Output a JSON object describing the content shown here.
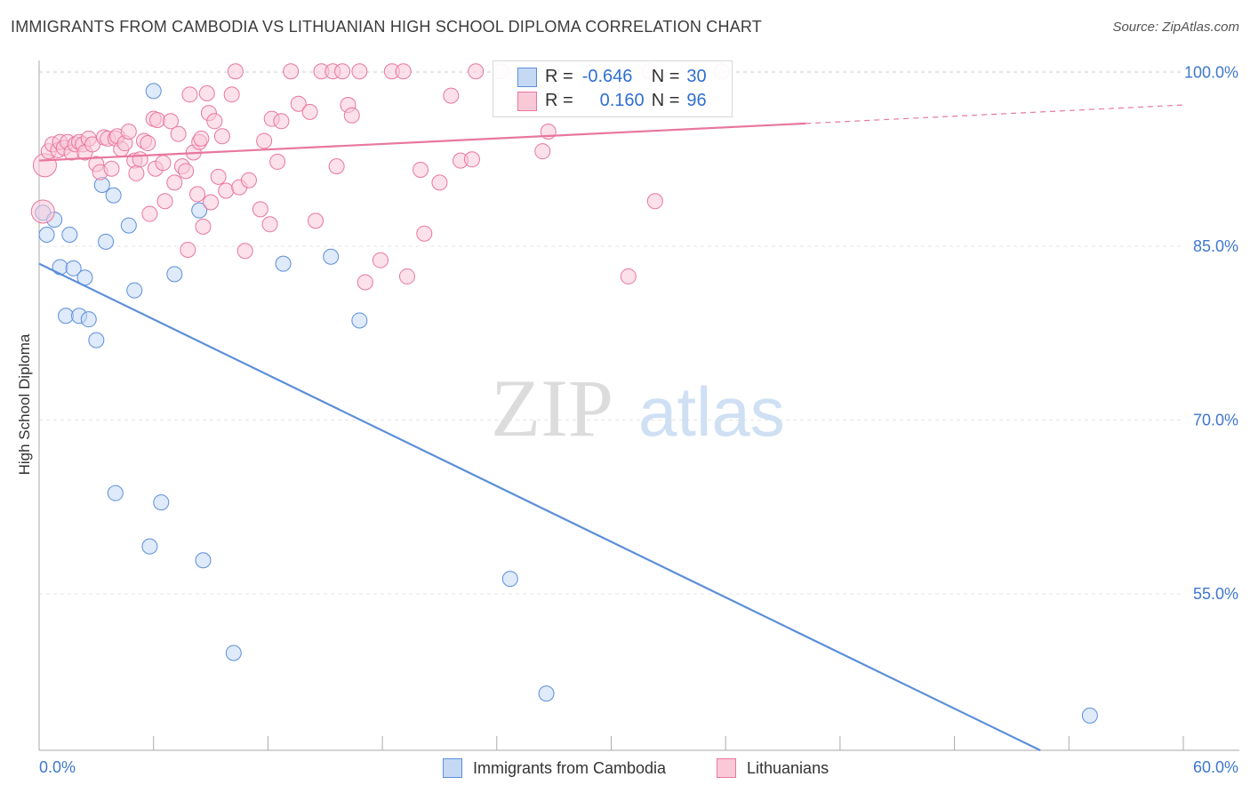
{
  "title": "IMMIGRANTS FROM CAMBODIA VS LITHUANIAN HIGH SCHOOL DIPLOMA CORRELATION CHART",
  "source": "Source: ZipAtlas.com",
  "watermark": {
    "zip": "ZIP",
    "atlas": "atlas"
  },
  "legend": {
    "r_label": "R =",
    "n_label": "N =",
    "rows": [
      {
        "r": "-0.646",
        "n": "30",
        "color": "#5b8fd9",
        "fill": "#c5d9f5"
      },
      {
        "r": "0.160",
        "n": "96",
        "color": "#e8779e",
        "fill": "#f9c9d8"
      }
    ]
  },
  "bottom_legend": [
    "Immigrants from Cambodia",
    "Lithuanians"
  ],
  "chart_data": {
    "type": "scatter",
    "title": "IMMIGRANTS FROM CAMBODIA VS LITHUANIAN HIGH SCHOOL DIPLOMA CORRELATION CHART",
    "xlabel": "",
    "ylabel": "High School Diploma",
    "xlim": [
      0,
      60
    ],
    "ylim": [
      41.5,
      101.5
    ],
    "x_tick_labels": [
      "0.0%",
      "60.0%"
    ],
    "y_ticks": [
      55,
      70,
      85,
      100
    ],
    "y_tick_labels": [
      "55.0%",
      "70.0%",
      "85.0%",
      "100.0%"
    ],
    "grid": true,
    "series": [
      {
        "name": "Immigrants from Cambodia",
        "color": "#5b8fd9",
        "fill": "#c5d9f5",
        "points": [
          [
            0.2,
            87.9
          ],
          [
            0.4,
            86.0
          ],
          [
            0.8,
            87.3
          ],
          [
            1.1,
            83.2
          ],
          [
            1.4,
            79.0
          ],
          [
            1.6,
            86.0
          ],
          [
            1.8,
            83.1
          ],
          [
            2.1,
            79.0
          ],
          [
            2.4,
            82.3
          ],
          [
            2.6,
            78.7
          ],
          [
            3.0,
            76.9
          ],
          [
            3.3,
            90.3
          ],
          [
            3.5,
            85.4
          ],
          [
            3.9,
            89.4
          ],
          [
            4.0,
            63.7
          ],
          [
            4.7,
            86.8
          ],
          [
            5.0,
            81.2
          ],
          [
            5.8,
            59.1
          ],
          [
            6.0,
            98.4
          ],
          [
            6.4,
            62.9
          ],
          [
            7.1,
            82.6
          ],
          [
            8.4,
            88.1
          ],
          [
            8.6,
            57.9
          ],
          [
            10.2,
            49.9
          ],
          [
            12.8,
            83.5
          ],
          [
            15.3,
            84.1
          ],
          [
            16.8,
            78.6
          ],
          [
            24.7,
            56.3
          ],
          [
            26.6,
            46.4
          ],
          [
            55.1,
            44.5
          ]
        ]
      },
      {
        "name": "Lithuanians",
        "color": "#e8779e",
        "fill": "#f9c9d8",
        "points": [
          [
            0.2,
            88.0
          ],
          [
            0.3,
            92.0
          ],
          [
            0.5,
            93.2
          ],
          [
            0.7,
            93.8
          ],
          [
            1.0,
            93.3
          ],
          [
            1.1,
            94.0
          ],
          [
            1.3,
            93.5
          ],
          [
            1.5,
            94.0
          ],
          [
            1.7,
            93.1
          ],
          [
            1.9,
            93.8
          ],
          [
            2.1,
            94.0
          ],
          [
            2.3,
            93.8
          ],
          [
            2.4,
            93.1
          ],
          [
            2.6,
            94.3
          ],
          [
            2.8,
            93.8
          ],
          [
            3.0,
            92.1
          ],
          [
            3.2,
            91.4
          ],
          [
            3.4,
            94.4
          ],
          [
            3.6,
            94.3
          ],
          [
            3.8,
            91.7
          ],
          [
            4.0,
            94.3
          ],
          [
            4.1,
            94.5
          ],
          [
            4.3,
            93.4
          ],
          [
            4.5,
            93.9
          ],
          [
            4.7,
            94.9
          ],
          [
            5.0,
            92.4
          ],
          [
            5.1,
            91.3
          ],
          [
            5.3,
            92.5
          ],
          [
            5.5,
            94.1
          ],
          [
            5.7,
            93.9
          ],
          [
            5.8,
            87.8
          ],
          [
            6.0,
            96.0
          ],
          [
            6.1,
            91.7
          ],
          [
            6.2,
            95.9
          ],
          [
            6.5,
            92.2
          ],
          [
            6.6,
            88.9
          ],
          [
            6.9,
            95.8
          ],
          [
            7.1,
            90.5
          ],
          [
            7.3,
            94.7
          ],
          [
            7.5,
            91.9
          ],
          [
            7.7,
            91.5
          ],
          [
            7.8,
            84.7
          ],
          [
            7.9,
            98.1
          ],
          [
            8.1,
            93.1
          ],
          [
            8.3,
            89.5
          ],
          [
            8.4,
            94.0
          ],
          [
            8.5,
            94.3
          ],
          [
            8.6,
            86.7
          ],
          [
            8.8,
            98.2
          ],
          [
            8.9,
            96.5
          ],
          [
            9.0,
            88.8
          ],
          [
            9.2,
            95.8
          ],
          [
            9.4,
            91.0
          ],
          [
            9.6,
            94.5
          ],
          [
            9.8,
            89.8
          ],
          [
            10.1,
            98.1
          ],
          [
            10.3,
            100.1
          ],
          [
            10.5,
            90.1
          ],
          [
            10.8,
            84.6
          ],
          [
            11.0,
            90.7
          ],
          [
            11.6,
            88.2
          ],
          [
            11.8,
            94.1
          ],
          [
            12.1,
            86.9
          ],
          [
            12.2,
            96.0
          ],
          [
            12.5,
            92.3
          ],
          [
            12.7,
            95.8
          ],
          [
            13.2,
            100.1
          ],
          [
            13.6,
            97.3
          ],
          [
            14.2,
            96.6
          ],
          [
            14.5,
            87.2
          ],
          [
            14.8,
            100.1
          ],
          [
            15.4,
            100.1
          ],
          [
            15.6,
            91.9
          ],
          [
            15.9,
            100.1
          ],
          [
            16.2,
            97.2
          ],
          [
            16.4,
            96.3
          ],
          [
            16.8,
            100.1
          ],
          [
            17.1,
            81.9
          ],
          [
            17.9,
            83.8
          ],
          [
            18.5,
            100.1
          ],
          [
            19.1,
            100.1
          ],
          [
            19.3,
            82.4
          ],
          [
            20.0,
            91.6
          ],
          [
            20.2,
            86.1
          ],
          [
            21.0,
            90.5
          ],
          [
            21.6,
            98.0
          ],
          [
            22.1,
            92.4
          ],
          [
            22.7,
            92.5
          ],
          [
            22.9,
            100.1
          ],
          [
            24.2,
            100.1
          ],
          [
            26.4,
            93.2
          ],
          [
            26.7,
            94.9
          ],
          [
            30.9,
            82.4
          ],
          [
            32.0,
            100.1
          ],
          [
            32.3,
            88.9
          ],
          [
            35.8,
            100.1
          ]
        ]
      }
    ],
    "trend_lines": [
      {
        "series": "Immigrants from Cambodia",
        "x": [
          0,
          52.5
        ],
        "y": [
          83.5,
          41.5
        ],
        "style": "solid"
      },
      {
        "series": "Lithuanians",
        "x": [
          0,
          40.2
        ],
        "y": [
          92.4,
          95.6
        ],
        "style": "solid"
      },
      {
        "series": "Lithuanians",
        "x": [
          40.2,
          60
        ],
        "y": [
          95.6,
          97.2
        ],
        "style": "dashed"
      }
    ]
  }
}
